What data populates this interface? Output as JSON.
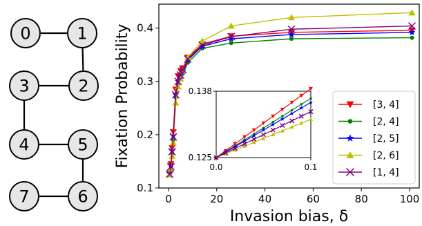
{
  "graph": {
    "nodes": [
      {
        "id": "0",
        "label": "0"
      },
      {
        "id": "1",
        "label": "1"
      },
      {
        "id": "2",
        "label": "2"
      },
      {
        "id": "3",
        "label": "3"
      },
      {
        "id": "4",
        "label": "4"
      },
      {
        "id": "5",
        "label": "5"
      },
      {
        "id": "6",
        "label": "6"
      },
      {
        "id": "7",
        "label": "7"
      }
    ],
    "edges": [
      [
        "0",
        "1"
      ],
      [
        "1",
        "2"
      ],
      [
        "2",
        "3"
      ],
      [
        "3",
        "4"
      ],
      [
        "4",
        "5"
      ],
      [
        "5",
        "6"
      ],
      [
        "6",
        "7"
      ]
    ]
  },
  "chart_data": {
    "type": "line",
    "title": "",
    "xlabel": "Invasion bias, δ",
    "ylabel": "Fixation Probability",
    "xlim": [
      -4,
      104
    ],
    "ylim": [
      0.1,
      0.445
    ],
    "xticks": [
      0,
      20,
      40,
      60,
      80,
      100
    ],
    "xtick_labels": [
      "0",
      "20",
      "40",
      "60",
      "80",
      "100"
    ],
    "yticks": [
      0.1,
      0.2,
      0.3,
      0.4
    ],
    "ytick_labels": [
      "0.1",
      "0.2",
      "0.3",
      "0.4"
    ],
    "grid": false,
    "legend_position": "lower-right",
    "series": [
      {
        "name": "[3, 4]",
        "color": "#ff0000",
        "marker": "triangle-down",
        "x": [
          0.5,
          1,
          1.5,
          2,
          3,
          4,
          5,
          6,
          8,
          14,
          26,
          51,
          101
        ],
        "y": [
          0.128,
          0.145,
          0.175,
          0.205,
          0.285,
          0.31,
          0.32,
          0.325,
          0.345,
          0.37,
          0.385,
          0.392,
          0.396
        ]
      },
      {
        "name": "[2, 4]",
        "color": "#008000",
        "marker": "circle",
        "x": [
          0.5,
          1,
          1.5,
          2,
          3,
          4,
          5,
          6,
          8,
          14,
          26,
          51,
          101
        ],
        "y": [
          0.126,
          0.14,
          0.165,
          0.19,
          0.27,
          0.295,
          0.305,
          0.315,
          0.335,
          0.362,
          0.372,
          0.38,
          0.382
        ]
      },
      {
        "name": "[2, 5]",
        "color": "#0000ff",
        "marker": "star",
        "x": [
          0.5,
          1,
          1.5,
          2,
          3,
          4,
          5,
          6,
          8,
          14,
          26,
          51,
          101
        ],
        "y": [
          0.127,
          0.142,
          0.17,
          0.198,
          0.275,
          0.3,
          0.31,
          0.32,
          0.34,
          0.366,
          0.38,
          0.388,
          0.392
        ]
      },
      {
        "name": "[2, 6]",
        "color": "#bfbf00",
        "marker": "triangle-up",
        "x": [
          0.5,
          1,
          1.5,
          2,
          3,
          4,
          5,
          6,
          8,
          14,
          26,
          51,
          101
        ],
        "y": [
          0.125,
          0.135,
          0.16,
          0.185,
          0.26,
          0.29,
          0.305,
          0.32,
          0.345,
          0.376,
          0.404,
          0.42,
          0.429
        ]
      },
      {
        "name": "[1, 4]",
        "color": "#800080",
        "marker": "x",
        "x": [
          0.5,
          1,
          1.5,
          2,
          3,
          4,
          5,
          6,
          8,
          14,
          26,
          51,
          101
        ],
        "y": [
          0.126,
          0.14,
          0.168,
          0.196,
          0.275,
          0.3,
          0.312,
          0.322,
          0.342,
          0.368,
          0.384,
          0.398,
          0.404
        ]
      }
    ],
    "inset": {
      "xlim": [
        0.0,
        0.1
      ],
      "ylim": [
        0.125,
        0.138
      ],
      "xticks": [
        0.0,
        0.1
      ],
      "xtick_labels": [
        "0.0",
        "0.1"
      ],
      "yticks": [
        0.125,
        0.138
      ],
      "ytick_labels": [
        "0.125",
        "0.138"
      ],
      "x": [
        0.0,
        0.01,
        0.02,
        0.03,
        0.04,
        0.05,
        0.06,
        0.07,
        0.08,
        0.09,
        0.1
      ],
      "slopes": [
        0.135,
        0.116,
        0.108,
        0.075,
        0.09
      ]
    }
  }
}
